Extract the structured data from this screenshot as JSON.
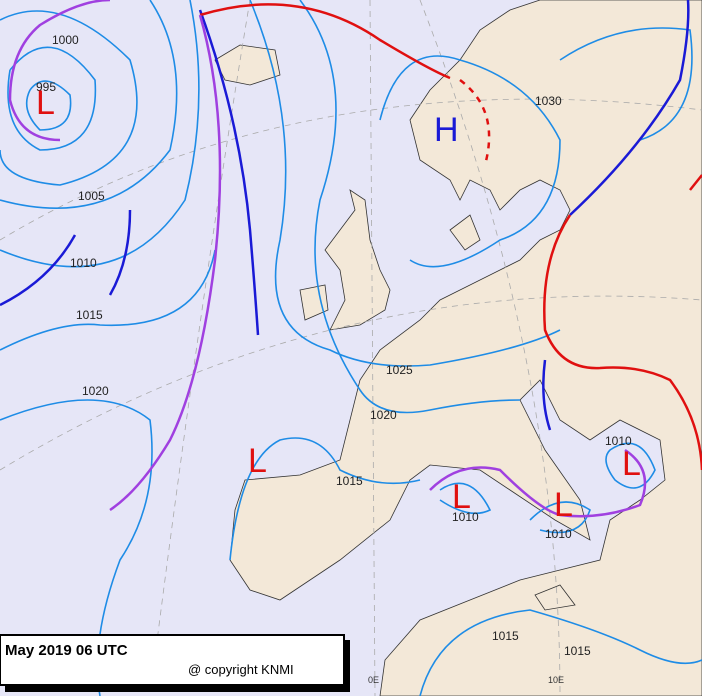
{
  "pressure_labels": [
    "1000",
    "995",
    "1005",
    "1010",
    "1015",
    "1020",
    "1030",
    "1025",
    "1020",
    "1015",
    "1010",
    "1010",
    "1010",
    "1015",
    "1015"
  ],
  "centers": [
    "L",
    "H",
    "L",
    "L",
    "L",
    "L"
  ],
  "meridians": [
    "0E",
    "10E"
  ],
  "caption": {
    "date": "May 2019 06 UTC",
    "copyright": "@ copyright KNMI"
  }
}
